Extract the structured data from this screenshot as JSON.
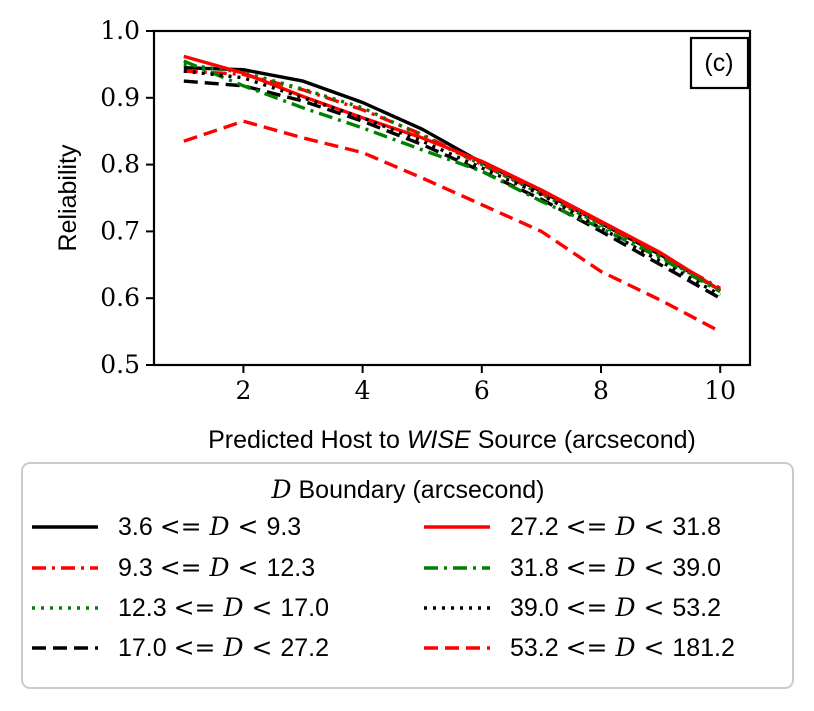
{
  "chart_data": {
    "type": "line",
    "panel_label": "(c)",
    "xlabel_prefix": "Predicted Host to ",
    "xlabel_italic": "WISE",
    "xlabel_suffix": " Source (arcsecond)",
    "ylabel": "Reliability",
    "xlim": [
      0.5,
      10.5
    ],
    "ylim": [
      0.5,
      1.0
    ],
    "xticks": [
      2,
      4,
      6,
      8,
      10
    ],
    "xtick_labels": [
      "2",
      "4",
      "6",
      "8",
      "10"
    ],
    "yticks": [
      0.5,
      0.6,
      0.7,
      0.8,
      0.9,
      1.0
    ],
    "ytick_labels": [
      "0.5",
      "0.6",
      "0.7",
      "0.8",
      "0.9",
      "1.0"
    ],
    "x": [
      1,
      2,
      3,
      4,
      5,
      6,
      7,
      8,
      9,
      10
    ],
    "legend_title_math": "D",
    "legend_title_text": " Boundary (arcsecond)",
    "legend_placement": "below plot",
    "series": [
      {
        "name": "3.6 <= D < 9.3",
        "lo": "3.6",
        "hi": "9.3",
        "color": "#000000",
        "dash": "solid",
        "values": [
          0.945,
          0.942,
          0.925,
          0.893,
          0.853,
          0.803,
          0.76,
          0.712,
          0.665,
          0.612
        ]
      },
      {
        "name": "9.3 <= D < 12.3",
        "lo": "9.3",
        "hi": "12.3",
        "color": "#ff0000",
        "dash": "dashdot",
        "values": [
          0.94,
          0.935,
          0.912,
          0.882,
          0.845,
          0.8,
          0.757,
          0.713,
          0.665,
          0.615
        ]
      },
      {
        "name": "12.3 <= D < 17.0",
        "lo": "12.3",
        "hi": "17.0",
        "color": "#008000",
        "dash": "dotted",
        "values": [
          0.95,
          0.938,
          0.913,
          0.885,
          0.843,
          0.8,
          0.756,
          0.71,
          0.662,
          0.612
        ]
      },
      {
        "name": "17.0 <= D < 27.2",
        "lo": "17.0",
        "hi": "27.2",
        "color": "#000000",
        "dash": "dashed",
        "values": [
          0.925,
          0.918,
          0.895,
          0.865,
          0.83,
          0.79,
          0.748,
          0.7,
          0.65,
          0.6
        ]
      },
      {
        "name": "27.2 <= D < 31.8",
        "lo": "27.2",
        "hi": "31.8",
        "color": "#ff0000",
        "dash": "solid",
        "values": [
          0.962,
          0.937,
          0.902,
          0.87,
          0.84,
          0.805,
          0.762,
          0.715,
          0.668,
          0.612
        ]
      },
      {
        "name": "31.8 <= D < 39.0",
        "lo": "31.8",
        "hi": "39.0",
        "color": "#008000",
        "dash": "dashdot",
        "values": [
          0.955,
          0.918,
          0.885,
          0.855,
          0.822,
          0.79,
          0.745,
          0.705,
          0.66,
          0.61
        ]
      },
      {
        "name": "39.0 <= D < 53.2",
        "lo": "39.0",
        "hi": "53.2",
        "color": "#000000",
        "dash": "dotted",
        "values": [
          0.94,
          0.93,
          0.9,
          0.87,
          0.835,
          0.795,
          0.755,
          0.705,
          0.655,
          0.605
        ]
      },
      {
        "name": "53.2 <= D < 181.2",
        "lo": "53.2",
        "hi": "181.2",
        "color": "#ff0000",
        "dash": "dashed",
        "values": [
          0.835,
          0.865,
          0.84,
          0.818,
          0.78,
          0.74,
          0.7,
          0.64,
          0.597,
          0.55
        ]
      }
    ]
  }
}
